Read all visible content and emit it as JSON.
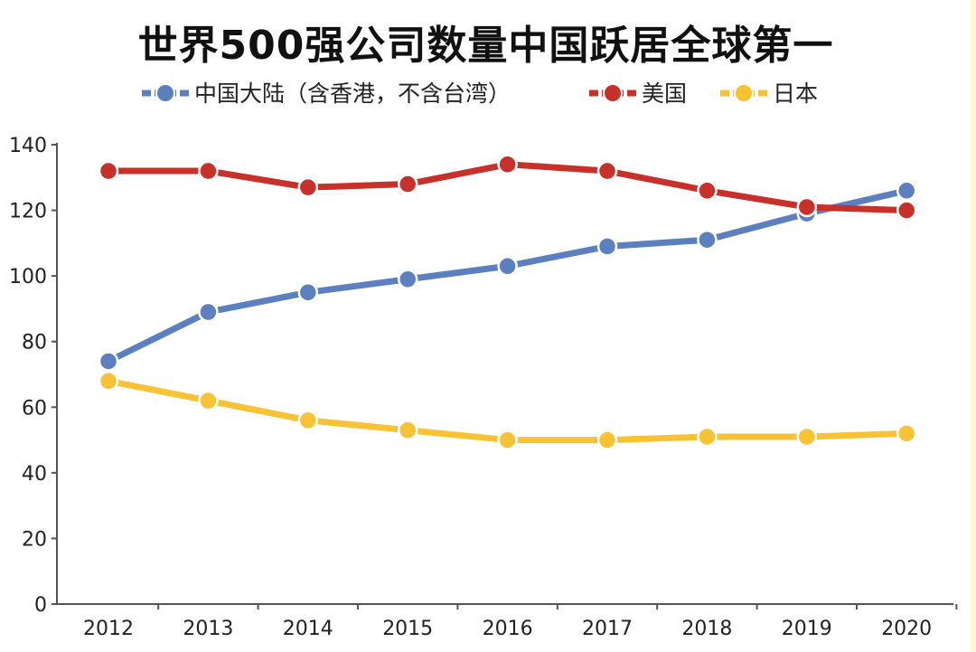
{
  "chart_data": {
    "type": "line",
    "title": "世界500强公司数量中国跃居全球第一",
    "xlabel": "",
    "ylabel": "",
    "x": [
      "2012",
      "2013",
      "2014",
      "2015",
      "2016",
      "2017",
      "2018",
      "2019",
      "2020"
    ],
    "ylim": [
      0,
      140
    ],
    "yticks": [
      0,
      20,
      40,
      60,
      80,
      100,
      120,
      140
    ],
    "grid": false,
    "legend_position": "top",
    "series": [
      {
        "name": "中国大陆（含香港，不含台湾）",
        "color": "#5b7fbf",
        "values": [
          74,
          89,
          95,
          99,
          103,
          109,
          111,
          119,
          126
        ]
      },
      {
        "name": "美国",
        "color": "#c8302a",
        "values": [
          132,
          132,
          127,
          128,
          134,
          132,
          126,
          121,
          120
        ]
      },
      {
        "name": "日本",
        "color": "#f7c234",
        "values": [
          68,
          62,
          56,
          53,
          50,
          50,
          51,
          51,
          52
        ]
      }
    ]
  }
}
